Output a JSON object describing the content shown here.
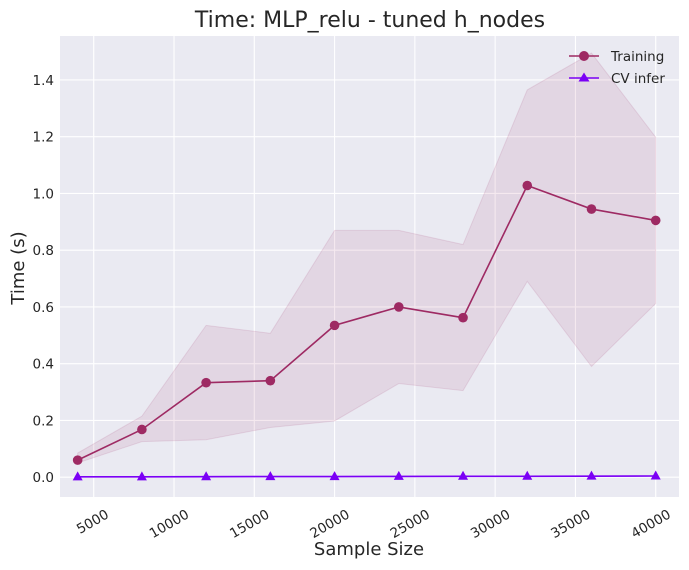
{
  "chart_data": {
    "type": "line",
    "title": "Time: MLP_relu - tuned h_nodes",
    "xlabel": "Sample Size",
    "ylabel": "Time (s)",
    "xlim": [
      2900,
      41450
    ],
    "ylim": [
      -0.07,
      1.555
    ],
    "xticks": [
      5000,
      10000,
      15000,
      20000,
      25000,
      30000,
      35000,
      40000
    ],
    "yticks": [
      0.0,
      0.2,
      0.4,
      0.6,
      0.8,
      1.0,
      1.2,
      1.4
    ],
    "x": [
      4000,
      8000,
      12000,
      16000,
      20000,
      24000,
      28000,
      32000,
      36000,
      40000
    ],
    "grid": true,
    "legend_position": "top-right",
    "background": "#eaeaf2",
    "series": [
      {
        "name": "Training",
        "color": "#9e2a63",
        "marker": "circle",
        "values": [
          0.06,
          0.168,
          0.333,
          0.34,
          0.535,
          0.6,
          0.562,
          1.028,
          0.945,
          0.905
        ],
        "band_lower": [
          0.05,
          0.125,
          0.132,
          0.175,
          0.198,
          0.33,
          0.305,
          0.69,
          0.39,
          0.612
        ],
        "band_upper": [
          0.085,
          0.215,
          0.535,
          0.507,
          0.87,
          0.87,
          0.82,
          1.365,
          1.495,
          1.198
        ]
      },
      {
        "name": "CV infer",
        "color": "#7b00f5",
        "marker": "triangle",
        "values": [
          0.001,
          0.001,
          0.0015,
          0.002,
          0.002,
          0.0025,
          0.003,
          0.003,
          0.0035,
          0.004
        ],
        "band_lower": [
          0.0,
          0.0,
          0.0,
          0.001,
          0.001,
          0.001,
          0.002,
          0.002,
          0.002,
          0.003
        ],
        "band_upper": [
          0.002,
          0.002,
          0.003,
          0.003,
          0.003,
          0.004,
          0.004,
          0.004,
          0.005,
          0.005
        ]
      }
    ]
  }
}
